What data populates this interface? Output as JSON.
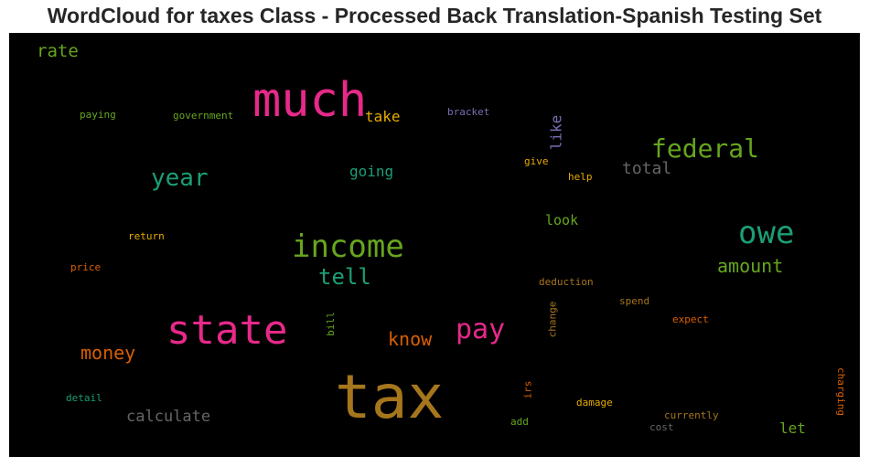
{
  "title": "WordCloud for taxes Class - Processed Back Translation-Spanish Testing Set",
  "colors": {
    "background": "#000000",
    "magenta": "#e7298a",
    "green": "#66a61e",
    "teal": "#1b9e77",
    "orange": "#d95f02",
    "gold": "#a6761d",
    "yellow": "#e6ab02",
    "gray": "#666666",
    "purple": "#7570b3"
  },
  "words": {
    "tax": "tax",
    "much": "much",
    "state": "state",
    "income": "income",
    "owe": "owe",
    "federal": "federal",
    "pay": "pay",
    "year": "year",
    "tell": "tell",
    "amount": "amount",
    "money": "money",
    "know": "know",
    "calculate": "calculate",
    "rate": "rate",
    "total": "total",
    "going": "going",
    "look": "look",
    "take": "take",
    "like": "like",
    "let": "let",
    "government": "government",
    "paying": "paying",
    "bracket": "bracket",
    "give": "give",
    "help": "help",
    "return": "return",
    "price": "price",
    "deduction": "deduction",
    "spend": "spend",
    "expect": "expect",
    "bill": "bill",
    "change": "change",
    "detail": "detail",
    "irs": "irs",
    "damage": "damage",
    "currently": "currently",
    "add": "add",
    "cost": "cost",
    "charging": "charging"
  }
}
